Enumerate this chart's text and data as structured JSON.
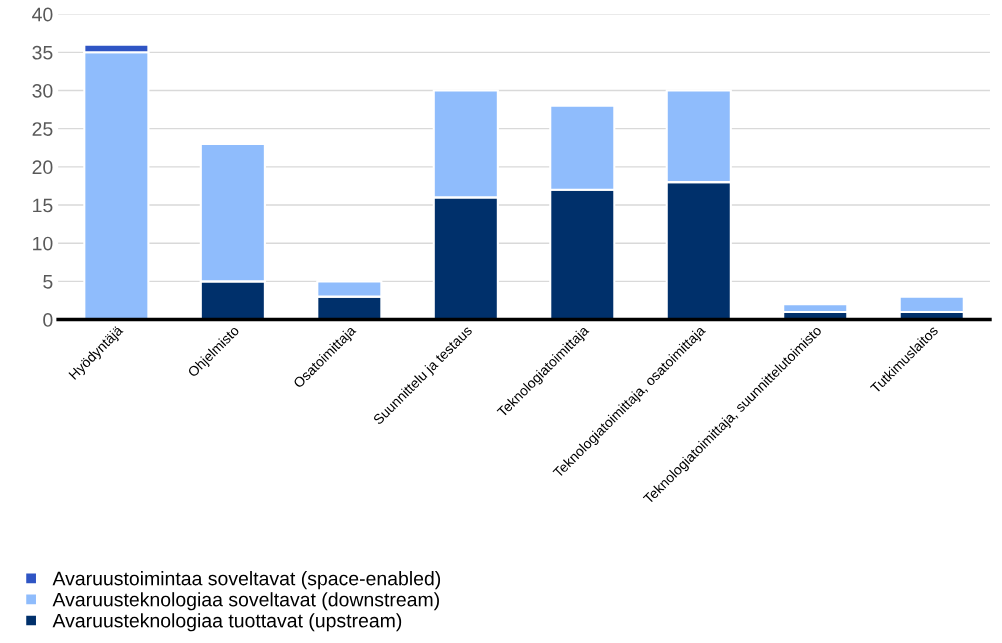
{
  "chart_data": {
    "type": "bar",
    "stacked": true,
    "categories": [
      "Hyödyntäjä",
      "Ohjelmisto",
      "Osatoimittaja",
      "Suunnittelu ja testaus",
      "Teknologiatoimittaja",
      "Teknologiatoimittaja, osatoimittaja",
      "Teknologiatoimittaja, suunnittelutoimisto",
      "Tutkimuslaitos"
    ],
    "series": [
      {
        "name": "Avaruusteknologiaa tuottavat (upstream)",
        "color": "#00306b",
        "values": [
          null,
          5,
          3,
          16,
          17,
          18,
          1,
          1
        ]
      },
      {
        "name": "Avaruusteknologiaa soveltavat (downstream)",
        "color": "#8fbcfc",
        "values": [
          35,
          18,
          2,
          14,
          11,
          12,
          1,
          2
        ]
      },
      {
        "name": "Avaruustoimintaa soveltavat (space-enabled)",
        "color": "#2f55c4",
        "values": [
          1,
          null,
          null,
          null,
          null,
          null,
          null,
          null
        ]
      }
    ],
    "ylim": [
      0,
      40
    ],
    "yticks": [
      0,
      5,
      10,
      15,
      20,
      25,
      30,
      35,
      40
    ],
    "grid": "y",
    "legend": "bottom left"
  }
}
